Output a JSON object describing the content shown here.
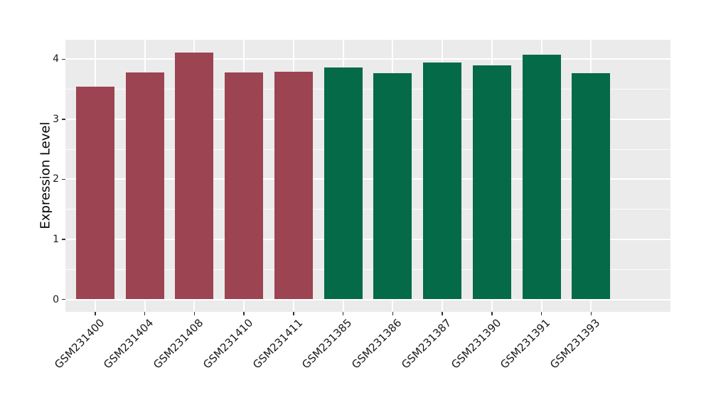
{
  "chart_data": {
    "type": "bar",
    "title": "",
    "xlabel": "",
    "ylabel": "Expression Level",
    "categories": [
      "GSM231400",
      "GSM231404",
      "GSM231408",
      "GSM231410",
      "GSM231411",
      "GSM231385",
      "GSM231386",
      "GSM231387",
      "GSM231390",
      "GSM231391",
      "GSM231393"
    ],
    "values": [
      3.54,
      3.78,
      4.11,
      3.78,
      3.79,
      3.86,
      3.77,
      3.94,
      3.9,
      4.08,
      3.77
    ],
    "groups": [
      "group1",
      "group1",
      "group1",
      "group1",
      "group1",
      "group2",
      "group2",
      "group2",
      "group2",
      "group2",
      "group2"
    ],
    "group_colors": {
      "group1": "#9C4451",
      "group2": "#056A47"
    },
    "ylim": [
      0,
      4.32
    ],
    "yticks_major": [
      0,
      1,
      2,
      3,
      4
    ],
    "yticks_minor": [
      0.5,
      1.5,
      2.5,
      3.5
    ],
    "grid": true,
    "legend": "none",
    "panel_bg": "#EBEBEB",
    "grid_color": "#FFFFFF",
    "tick_color": "#333333",
    "text_color": "#1A1A1A"
  }
}
